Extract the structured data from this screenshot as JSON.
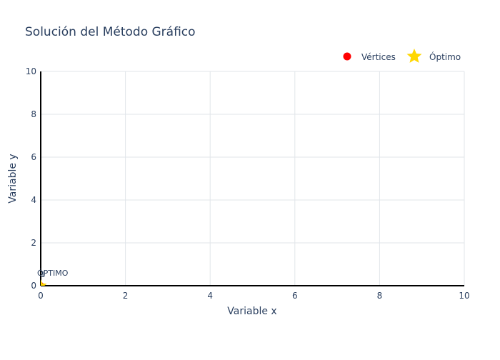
{
  "chart_data": {
    "type": "scatter",
    "title": "Solución del Método Gráfico",
    "xlabel": "Variable x",
    "ylabel": "Variable y",
    "xlim": [
      0,
      10
    ],
    "ylim": [
      0,
      10
    ],
    "x_ticks": [
      0,
      2,
      4,
      6,
      8,
      10
    ],
    "y_ticks": [
      0,
      2,
      4,
      6,
      8,
      10
    ],
    "grid": true,
    "legend": {
      "placement": "top-right",
      "orientation": "horizontal",
      "entries": [
        {
          "name": "Vértices",
          "symbol": "circle",
          "color": "#ff0000"
        },
        {
          "name": "Óptimo",
          "symbol": "star",
          "color": "#ffd700"
        }
      ]
    },
    "series": [
      {
        "name": "Vértices",
        "symbol": "circle",
        "color": "#ff0000",
        "points": [
          {
            "x": 0,
            "y": 0
          }
        ]
      },
      {
        "name": "Óptimo",
        "symbol": "star",
        "color": "#ffd700",
        "points": [
          {
            "x": 0,
            "y": 0
          }
        ]
      }
    ],
    "annotations": [
      {
        "text": "1",
        "x": 0,
        "y": 0
      },
      {
        "text": "ÓPTIMO",
        "x": 0,
        "y": 0
      }
    ]
  }
}
